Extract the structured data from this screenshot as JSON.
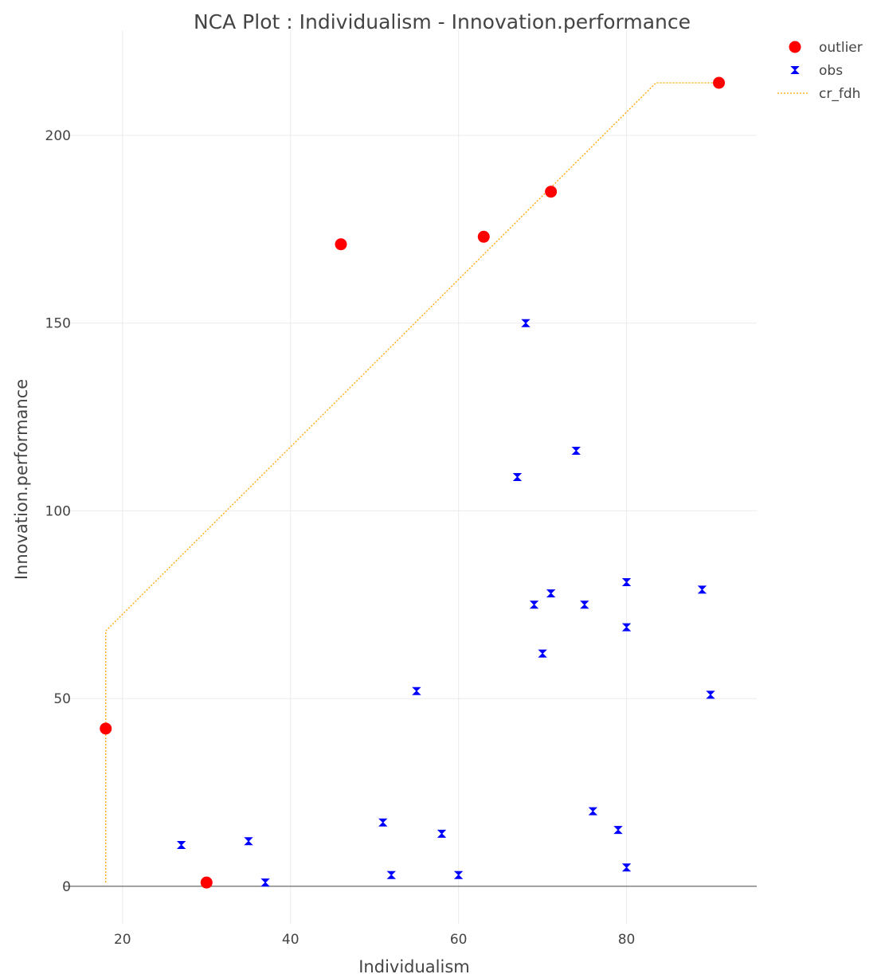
{
  "chart_data": {
    "type": "scatter",
    "title": "NCA Plot : Individualism - Innovation.performance",
    "xlabel": "Individualism",
    "ylabel": "Innovation.performance",
    "xlim": [
      13,
      95.5
    ],
    "ylim": [
      -10,
      228
    ],
    "x_ticks": [
      20,
      40,
      60,
      80
    ],
    "y_ticks": [
      0,
      50,
      100,
      150,
      200
    ],
    "grid": true,
    "legend_position": "top-right",
    "series": [
      {
        "name": "outlier",
        "marker": "circle",
        "color": "#ff0000",
        "points": [
          [
            18,
            42
          ],
          [
            30,
            1
          ],
          [
            46,
            171
          ],
          [
            63,
            173
          ],
          [
            71,
            185
          ],
          [
            91,
            214
          ]
        ]
      },
      {
        "name": "obs",
        "marker": "bowtie",
        "color": "#0000ff",
        "points": [
          [
            27,
            11
          ],
          [
            35,
            12
          ],
          [
            37,
            1
          ],
          [
            51,
            17
          ],
          [
            52,
            3
          ],
          [
            55,
            52
          ],
          [
            58,
            14
          ],
          [
            60,
            3
          ],
          [
            67,
            109
          ],
          [
            68,
            150
          ],
          [
            69,
            75
          ],
          [
            70,
            62
          ],
          [
            71,
            78
          ],
          [
            74,
            116
          ],
          [
            75,
            75
          ],
          [
            76,
            20
          ],
          [
            79,
            15
          ],
          [
            80,
            5
          ],
          [
            80,
            69
          ],
          [
            80,
            81
          ],
          [
            89,
            79
          ],
          [
            90,
            51
          ]
        ]
      },
      {
        "name": "cr_fdh",
        "marker": "line",
        "color": "#ffa500",
        "points": [
          [
            18,
            1
          ],
          [
            18,
            68
          ],
          [
            83.5,
            214
          ],
          [
            91,
            214
          ]
        ]
      }
    ]
  }
}
